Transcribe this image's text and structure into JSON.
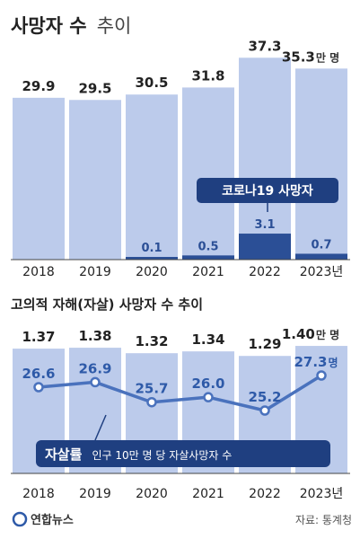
{
  "title": {
    "main": "사망자 수",
    "sub": "추이"
  },
  "chart_data": [
    {
      "type": "bar",
      "categories": [
        "2018",
        "2019",
        "2020",
        "2021",
        "2022",
        "2023년"
      ],
      "value_labels": [
        "29.9",
        "29.5",
        "30.5",
        "31.8",
        "37.3",
        "35.3"
      ],
      "series": [
        {
          "name": "",
          "values": [
            29.9,
            29.5,
            30.5,
            31.8,
            37.3,
            35.3
          ]
        },
        {
          "name": "코로나19 사망자",
          "values": [
            null,
            null,
            0.1,
            0.5,
            3.1,
            0.7
          ]
        }
      ],
      "covid_labels": [
        "",
        "",
        "0.1",
        "0.5",
        "3.1",
        "0.7"
      ],
      "unit_label": "만 명",
      "callout": "코로나19 사망자",
      "ylim": [
        0,
        40
      ]
    },
    {
      "type": "bar+line",
      "title": "고의적 자해(자살) 사망자 수 추이",
      "categories": [
        "2018",
        "2019",
        "2020",
        "2021",
        "2022",
        "2023년"
      ],
      "value_labels": [
        "1.37",
        "1.38",
        "1.32",
        "1.34",
        "1.29",
        "1.40"
      ],
      "unit_label": "만 명",
      "series": [
        {
          "name": "",
          "values": [
            1.37,
            1.38,
            1.32,
            1.34,
            1.29,
            1.4
          ]
        },
        {
          "name": "자살률",
          "values": [
            26.6,
            26.9,
            25.7,
            26.0,
            25.2,
            27.3
          ]
        }
      ],
      "rate_labels": [
        "26.6",
        "26.9",
        "25.7",
        "26.0",
        "25.2",
        "27.3"
      ],
      "rate_unit": "명",
      "legend": {
        "strong": "자살률",
        "text": "인구 10만 명 당 자살사망자 수"
      },
      "ylim": [
        0,
        1.45
      ]
    }
  ],
  "footer": {
    "logo": "연합뉴스",
    "source": "자료: 통계청"
  },
  "colors": {
    "bar": "#bccbeb",
    "covid": "#2b4f96",
    "line": "#4a72bd",
    "dark": "#1f3f80"
  }
}
